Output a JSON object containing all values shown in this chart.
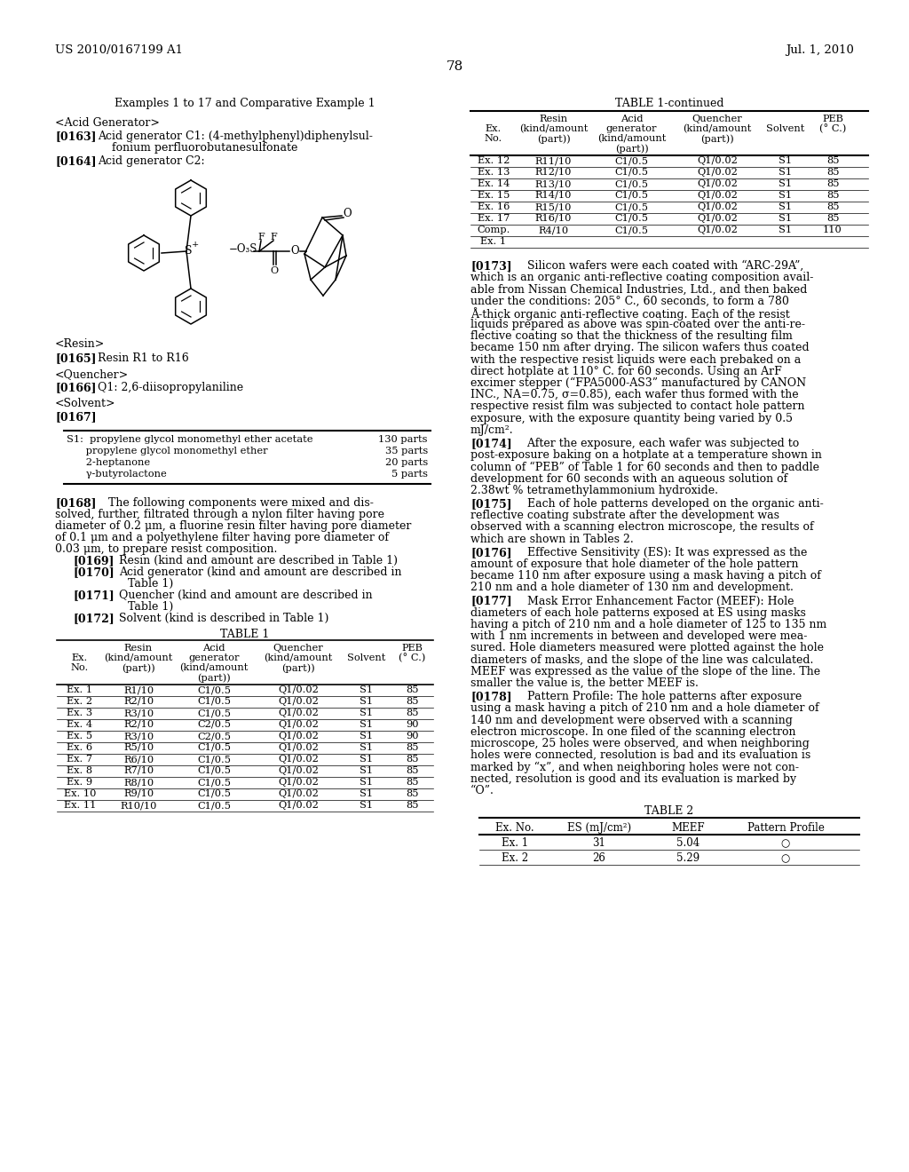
{
  "bg_color": "#ffffff",
  "header_left": "US 2010/0167199 A1",
  "header_right": "Jul. 1, 2010",
  "page_number": "78",
  "title_section": "Examples 1 to 17 and Comparative Example 1",
  "solvent_entries": [
    [
      "S1:  propylene glycol monomethyl ether acetate",
      "130 parts"
    ],
    [
      "      propylene glycol monomethyl ether",
      "35 parts"
    ],
    [
      "      2-heptanone",
      "20 parts"
    ],
    [
      "      γ-butyrolactone",
      "5 parts"
    ]
  ],
  "table1_headers_line1": [
    "",
    "Resin",
    "Acid",
    "Quencher",
    "",
    "PEB"
  ],
  "table1_headers_line2": [
    "Ex.",
    "(kind/amount",
    "generator",
    "(kind/amount",
    "Solvent",
    "(° C.)"
  ],
  "table1_headers_line3": [
    "No.",
    "(part))",
    "(kind/amount",
    "(part))",
    "",
    ""
  ],
  "table1_headers_line4": [
    "",
    "",
    "(part))",
    "",
    "",
    ""
  ],
  "table1_rows": [
    [
      "Ex. 1",
      "R1/10",
      "C1/0.5",
      "Q1/0.02",
      "S1",
      "85"
    ],
    [
      "Ex. 2",
      "R2/10",
      "C1/0.5",
      "Q1/0.02",
      "S1",
      "85"
    ],
    [
      "Ex. 3",
      "R3/10",
      "C1/0.5",
      "Q1/0.02",
      "S1",
      "85"
    ],
    [
      "Ex. 4",
      "R2/10",
      "C2/0.5",
      "Q1/0.02",
      "S1",
      "90"
    ],
    [
      "Ex. 5",
      "R3/10",
      "C2/0.5",
      "Q1/0.02",
      "S1",
      "90"
    ],
    [
      "Ex. 6",
      "R5/10",
      "C1/0.5",
      "Q1/0.02",
      "S1",
      "85"
    ],
    [
      "Ex. 7",
      "R6/10",
      "C1/0.5",
      "Q1/0.02",
      "S1",
      "85"
    ],
    [
      "Ex. 8",
      "R7/10",
      "C1/0.5",
      "Q1/0.02",
      "S1",
      "85"
    ],
    [
      "Ex. 9",
      "R8/10",
      "C1/0.5",
      "Q1/0.02",
      "S1",
      "85"
    ],
    [
      "Ex. 10",
      "R9/10",
      "C1/0.5",
      "Q1/0.02",
      "S1",
      "85"
    ],
    [
      "Ex. 11",
      "R10/10",
      "C1/0.5",
      "Q1/0.02",
      "S1",
      "85"
    ]
  ],
  "table1c_rows": [
    [
      "Ex. 12",
      "R11/10",
      "C1/0.5",
      "Q1/0.02",
      "S1",
      "85"
    ],
    [
      "Ex. 13",
      "R12/10",
      "C1/0.5",
      "Q1/0.02",
      "S1",
      "85"
    ],
    [
      "Ex. 14",
      "R13/10",
      "C1/0.5",
      "Q1/0.02",
      "S1",
      "85"
    ],
    [
      "Ex. 15",
      "R14/10",
      "C1/0.5",
      "Q1/0.02",
      "S1",
      "85"
    ],
    [
      "Ex. 16",
      "R15/10",
      "C1/0.5",
      "Q1/0.02",
      "S1",
      "85"
    ],
    [
      "Ex. 17",
      "R16/10",
      "C1/0.5",
      "Q1/0.02",
      "S1",
      "85"
    ],
    [
      "Comp.",
      "R4/10",
      "C1/0.5",
      "Q1/0.02",
      "S1",
      "110"
    ],
    [
      "Ex. 1",
      "",
      "",
      "",
      "",
      ""
    ]
  ],
  "para_0173_lines": [
    "[0173]    Silicon wafers were each coated with “ARC-29A”,",
    "which is an organic anti-reflective coating composition avail-",
    "able from Nissan Chemical Industries, Ltd., and then baked",
    "under the conditions: 205° C., 60 seconds, to form a 780",
    "Å-thick organic anti-reflective coating. Each of the resist",
    "liquids prepared as above was spin-coated over the anti-re-",
    "flective coating so that the thickness of the resulting film",
    "became 150 nm after drying. The silicon wafers thus coated",
    "with the respective resist liquids were each prebaked on a",
    "direct hotplate at 110° C. for 60 seconds. Using an ArF",
    "excimer stepper (“FPA5000-AS3” manufactured by CANON",
    "INC., NA=0.75, σ=0.85), each wafer thus formed with the",
    "respective resist film was subjected to contact hole pattern",
    "exposure, with the exposure quantity being varied by 0.5",
    "mJ/cm²."
  ],
  "para_0174_lines": [
    "[0174]    After the exposure, each wafer was subjected to",
    "post-exposure baking on a hotplate at a temperature shown in",
    "column of “PEB” of Table 1 for 60 seconds and then to paddle",
    "development for 60 seconds with an aqueous solution of",
    "2.38wt % tetramethylammonium hydroxide."
  ],
  "para_0175_lines": [
    "[0175]    Each of hole patterns developed on the organic anti-",
    "reflective coating substrate after the development was",
    "observed with a scanning electron microscope, the results of",
    "which are shown in Tables 2."
  ],
  "para_0176_lines": [
    "[0176]    Effective Sensitivity (ES): It was expressed as the",
    "amount of exposure that hole diameter of the hole pattern",
    "became 110 nm after exposure using a mask having a pitch of",
    "210 nm and a hole diameter of 130 nm and development."
  ],
  "para_0177_lines": [
    "[0177]    Mask Error Enhancement Factor (MEEF): Hole",
    "diameters of each hole patterns exposed at ES using masks",
    "having a pitch of 210 nm and a hole diameter of 125 to 135 nm",
    "with 1 nm increments in between and developed were mea-",
    "sured. Hole diameters measured were plotted against the hole",
    "diameters of masks, and the slope of the line was calculated.",
    "MEEF was expressed as the value of the slope of the line. The",
    "smaller the value is, the better MEEF is."
  ],
  "para_0178_lines": [
    "[0178]    Pattern Profile: The hole patterns after exposure",
    "using a mask having a pitch of 210 nm and a hole diameter of",
    "140 nm and development were observed with a scanning",
    "electron microscope. In one filed of the scanning electron",
    "microscope, 25 holes were observed, and when neighboring",
    "holes were connected, resolution is bad and its evaluation is",
    "marked by “x”, and when neighboring holes were not con-",
    "nected, resolution is good and its evaluation is marked by",
    "“O”."
  ],
  "table2_rows": [
    [
      "Ex. 1",
      "31",
      "5.04",
      "○"
    ],
    [
      "Ex. 2",
      "26",
      "5.29",
      "○"
    ]
  ]
}
